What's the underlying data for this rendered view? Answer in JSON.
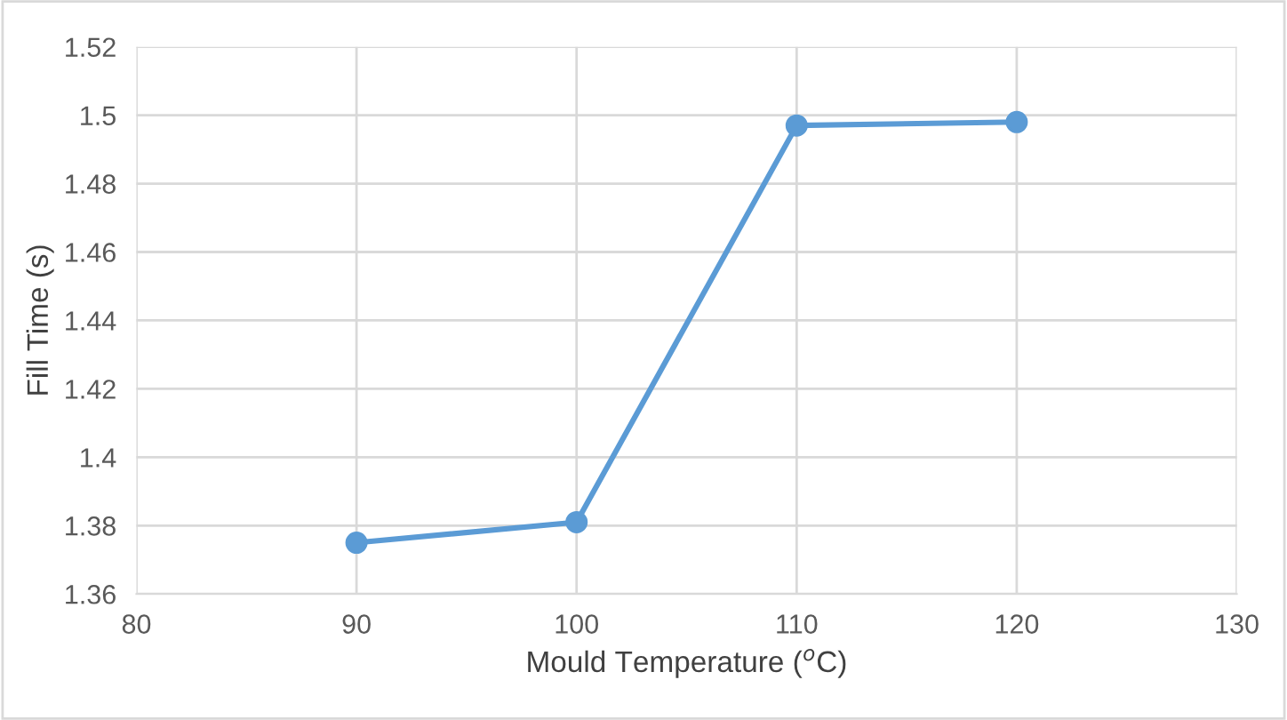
{
  "chart_data": {
    "type": "line",
    "xlabel": "Mould Temperature ($^{o}$C)",
    "ylabel": "Fill Time (s)",
    "x": [
      90,
      100,
      110,
      120
    ],
    "series": [
      {
        "color": "#5b9bd5",
        "values": [
          1.375,
          1.381,
          1.497,
          1.498
        ]
      }
    ],
    "xlim": [
      80,
      130
    ],
    "xticks": [
      80,
      90,
      100,
      110,
      120,
      130
    ],
    "ylim": [
      1.36,
      1.52
    ],
    "yticks": [
      {
        "value": 1.36,
        "label": "1.36"
      },
      {
        "value": 1.38,
        "label": "1.38"
      },
      {
        "value": 1.4,
        "label": "1.4"
      },
      {
        "value": 1.42,
        "label": "1.42"
      },
      {
        "value": 1.44,
        "label": "1.44"
      },
      {
        "value": 1.46,
        "label": "1.46"
      },
      {
        "value": 1.48,
        "label": "1.48"
      },
      {
        "value": 1.5,
        "label": "1.5"
      },
      {
        "value": 1.52,
        "label": "1.52"
      }
    ],
    "grid": true,
    "marker": "circle",
    "line_style": "solid"
  }
}
